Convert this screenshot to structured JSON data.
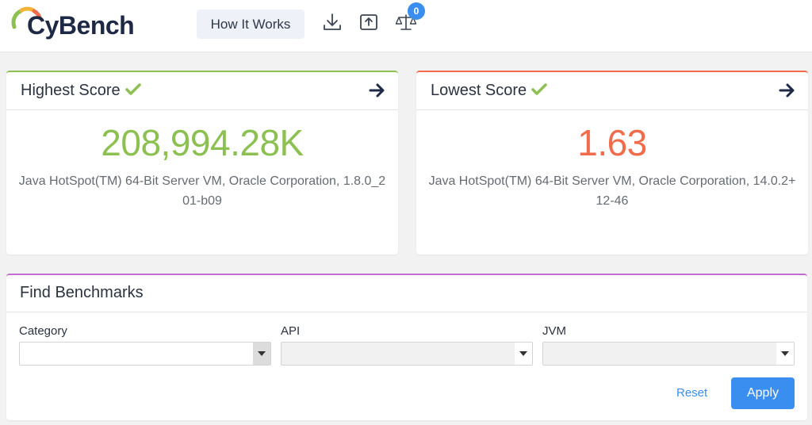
{
  "header": {
    "brand": "CyBench",
    "how_it_works_label": "How It Works",
    "compare_count": "0",
    "icons": [
      "download-icon",
      "upload-icon",
      "scale-icon"
    ]
  },
  "highest": {
    "title": "Highest Score",
    "value": "208,994.28K",
    "description": "Java HotSpot(TM) 64-Bit Server VM, Oracle Corporation, 1.8.0_201-b09",
    "accent": "#8cc152"
  },
  "lowest": {
    "title": "Lowest Score",
    "value": "1.63",
    "description": "Java HotSpot(TM) 64-Bit Server VM, Oracle Corporation, 14.0.2+12-46",
    "accent": "#f26b4a"
  },
  "find": {
    "title": "Find Benchmarks",
    "category": {
      "label": "Category",
      "value": ""
    },
    "api": {
      "label": "API",
      "value": ""
    },
    "jvm": {
      "label": "JVM",
      "value": ""
    },
    "reset_label": "Reset",
    "apply_label": "Apply",
    "accent": "#c26ed0"
  },
  "colors": {
    "primary": "#3a8ef0",
    "check": "#8cc152"
  }
}
